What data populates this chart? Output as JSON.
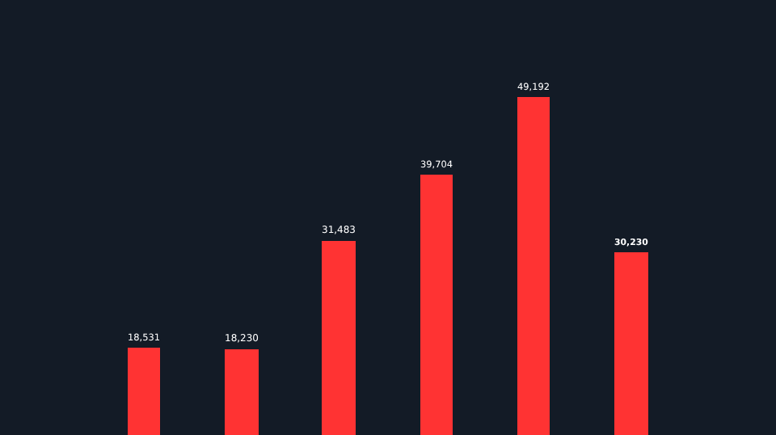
{
  "chart_data": {
    "type": "bar",
    "categories": [
      null,
      null,
      null,
      null,
      null,
      null
    ],
    "values": [
      18531,
      18230,
      31483,
      39704,
      49192,
      30230
    ],
    "color": "#ff3333",
    "ylim": [
      7850,
      61000
    ],
    "data_labels": true,
    "value_labels": [
      "18,531",
      "18,230",
      "31,483",
      "39,704",
      "49,192",
      "30,230"
    ],
    "tick_labels": false,
    "grid": false,
    "legend": false
  }
}
